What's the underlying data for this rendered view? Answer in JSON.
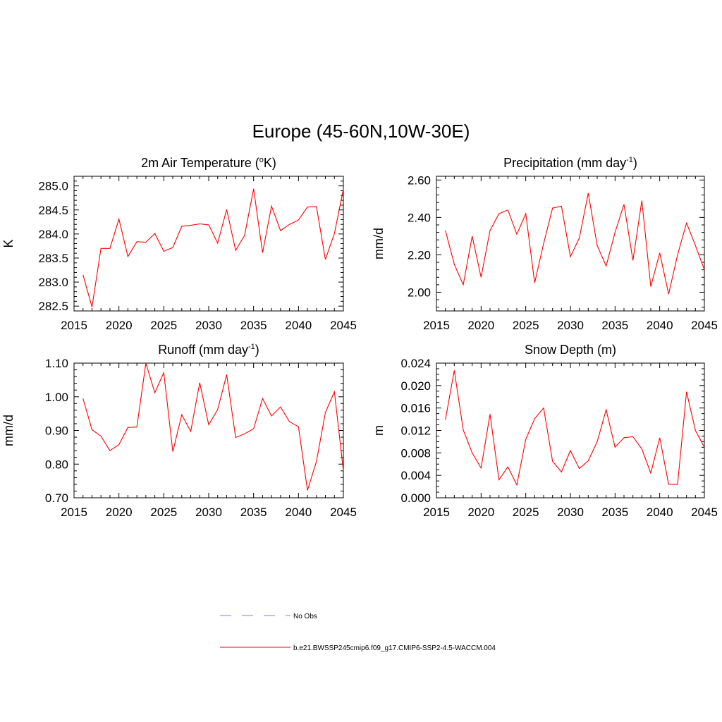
{
  "figure": {
    "title": "Europe (45-60N,10W-30E)",
    "legend": [
      {
        "label": "No Obs",
        "style": "dashed",
        "color": "#9a9ad8"
      },
      {
        "label": "b.e21.BWSSP245cmip6.f09_g17.CMIP6-SSP2-4.5-WACCM.004",
        "style": "solid",
        "color": "#ff3333"
      }
    ]
  },
  "chart_data": [
    {
      "type": "line",
      "title": "2m Air Temperature (",
      "title_sup": "o",
      "title_after": "K)",
      "ylabel": "K",
      "xlim": [
        2015,
        2045
      ],
      "ylim": [
        282.4,
        285.2
      ],
      "xticks": [
        2015,
        2020,
        2025,
        2030,
        2035,
        2040,
        2045
      ],
      "yticks": [
        282.5,
        283.0,
        283.5,
        284.0,
        284.5,
        285.0
      ],
      "ytick_labels": [
        "282.5",
        "283.0",
        "283.5",
        "284.0",
        "284.5",
        "285.0"
      ],
      "yminor": 0.1,
      "x": [
        2016,
        2017,
        2018,
        2019,
        2020,
        2021,
        2022,
        2023,
        2024,
        2025,
        2026,
        2027,
        2028,
        2029,
        2030,
        2031,
        2032,
        2033,
        2034,
        2035,
        2036,
        2037,
        2038,
        2039,
        2040,
        2041,
        2042,
        2043,
        2044,
        2045
      ],
      "series": [
        {
          "name": "b.e21.BWSSP245cmip6.f09_g17.CMIP6-SSP2-4.5-WACCM.004",
          "color": "#ff0000",
          "values": [
            283.15,
            282.48,
            283.7,
            283.7,
            284.31,
            283.53,
            283.84,
            283.83,
            284.01,
            283.64,
            283.72,
            284.16,
            284.18,
            284.21,
            284.19,
            283.81,
            284.51,
            283.66,
            283.97,
            284.94,
            283.61,
            284.58,
            284.07,
            284.2,
            284.29,
            284.56,
            284.57,
            283.47,
            284.01,
            284.93
          ]
        }
      ]
    },
    {
      "type": "line",
      "title": "Precipitation (mm day",
      "title_sup": "-1",
      "title_after": ")",
      "ylabel": "mm/d",
      "xlim": [
        2015,
        2045
      ],
      "ylim": [
        1.9,
        2.62
      ],
      "xticks": [
        2015,
        2020,
        2025,
        2030,
        2035,
        2040,
        2045
      ],
      "yticks": [
        2.0,
        2.2,
        2.4,
        2.6
      ],
      "ytick_labels": [
        "2.00",
        "2.20",
        "2.40",
        "2.60"
      ],
      "yminor": 0.04,
      "x": [
        2016,
        2017,
        2018,
        2019,
        2020,
        2021,
        2022,
        2023,
        2024,
        2025,
        2026,
        2027,
        2028,
        2029,
        2030,
        2031,
        2032,
        2033,
        2034,
        2035,
        2036,
        2037,
        2038,
        2039,
        2040,
        2041,
        2042,
        2043,
        2044,
        2045
      ],
      "series": [
        {
          "name": "b.e21.BWSSP245cmip6.f09_g17.CMIP6-SSP2-4.5-WACCM.004",
          "color": "#ff0000",
          "values": [
            2.33,
            2.15,
            2.04,
            2.3,
            2.08,
            2.33,
            2.42,
            2.44,
            2.31,
            2.42,
            2.05,
            2.26,
            2.45,
            2.46,
            2.19,
            2.29,
            2.53,
            2.25,
            2.14,
            2.32,
            2.47,
            2.17,
            2.49,
            2.03,
            2.21,
            1.99,
            2.2,
            2.37,
            2.25,
            2.12
          ]
        }
      ]
    },
    {
      "type": "line",
      "title": "Runoff (mm day",
      "title_sup": "-1",
      "title_after": ")",
      "ylabel": "mm/d",
      "xlim": [
        2015,
        2045
      ],
      "ylim": [
        0.7,
        1.1
      ],
      "xticks": [
        2015,
        2020,
        2025,
        2030,
        2035,
        2040,
        2045
      ],
      "yticks": [
        0.7,
        0.8,
        0.9,
        1.0,
        1.1
      ],
      "ytick_labels": [
        "0.70",
        "0.80",
        "0.90",
        "1.00",
        "1.10"
      ],
      "yminor": 0.02,
      "x": [
        2016,
        2017,
        2018,
        2019,
        2020,
        2021,
        2022,
        2023,
        2024,
        2025,
        2026,
        2027,
        2028,
        2029,
        2030,
        2031,
        2032,
        2033,
        2034,
        2035,
        2036,
        2037,
        2038,
        2039,
        2040,
        2041,
        2042,
        2043,
        2044,
        2045
      ],
      "series": [
        {
          "name": "b.e21.BWSSP245cmip6.f09_g17.CMIP6-SSP2-4.5-WACCM.004",
          "color": "#ff0000",
          "values": [
            0.995,
            0.902,
            0.883,
            0.84,
            0.858,
            0.909,
            0.91,
            1.1,
            1.012,
            1.072,
            0.837,
            0.947,
            0.897,
            1.042,
            0.917,
            0.962,
            1.066,
            0.879,
            0.89,
            0.905,
            0.995,
            0.943,
            0.97,
            0.926,
            0.911,
            0.722,
            0.808,
            0.953,
            1.015,
            0.78
          ]
        }
      ]
    },
    {
      "type": "line",
      "title": "Snow Depth (m)",
      "title_sup": "",
      "title_after": "",
      "ylabel": "m",
      "xlim": [
        2015,
        2045
      ],
      "ylim": [
        0.0,
        0.024
      ],
      "xticks": [
        2015,
        2020,
        2025,
        2030,
        2035,
        2040,
        2045
      ],
      "yticks": [
        0.0,
        0.004,
        0.008,
        0.012,
        0.016,
        0.02,
        0.024
      ],
      "ytick_labels": [
        "0.000",
        "0.004",
        "0.008",
        "0.012",
        "0.016",
        "0.020",
        "0.024"
      ],
      "yminor": 0.001,
      "x": [
        2016,
        2017,
        2018,
        2019,
        2020,
        2021,
        2022,
        2023,
        2024,
        2025,
        2026,
        2027,
        2028,
        2029,
        2030,
        2031,
        2032,
        2033,
        2034,
        2035,
        2036,
        2037,
        2038,
        2039,
        2040,
        2041,
        2042,
        2043,
        2044,
        2045
      ],
      "series": [
        {
          "name": "b.e21.BWSSP245cmip6.f09_g17.CMIP6-SSP2-4.5-WACCM.004",
          "color": "#ff0000",
          "values": [
            0.0139,
            0.0227,
            0.0121,
            0.008,
            0.0053,
            0.0149,
            0.0032,
            0.0055,
            0.0023,
            0.0104,
            0.0141,
            0.016,
            0.0065,
            0.0046,
            0.0084,
            0.0052,
            0.0066,
            0.01,
            0.0157,
            0.009,
            0.0107,
            0.0109,
            0.0087,
            0.0044,
            0.0107,
            0.0024,
            0.0024,
            0.0189,
            0.012,
            0.009
          ]
        }
      ]
    }
  ]
}
